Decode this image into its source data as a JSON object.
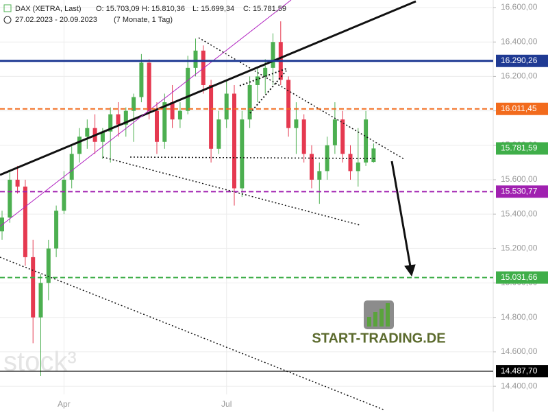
{
  "chart_data": {
    "type": "candlestick",
    "header": {
      "title": "DAX (XETRA, Last)",
      "items": [
        "O: 15.703,09",
        "H: 15.810,36",
        "L: 15.699,34",
        "C: 15.781,59"
      ],
      "range": "27.02.2023 - 20.09.2023",
      "duration": "(7 Monate, 1 Tag)"
    },
    "watermark": "stock³",
    "logo": "START-TRADING.DE",
    "categories": [
      null,
      null,
      null,
      null,
      null,
      null,
      null,
      null,
      "Apr",
      null,
      null,
      null,
      null,
      null,
      null,
      null,
      null,
      null,
      null,
      null,
      null,
      null,
      null,
      null,
      null,
      null,
      null,
      null,
      null,
      "Jul",
      null,
      null,
      null,
      null,
      null,
      null,
      null,
      null,
      null,
      null,
      null,
      null,
      null,
      null,
      null,
      null,
      null,
      null,
      null
    ],
    "open": [
      15300,
      15380,
      15600,
      15560,
      15150,
      14800,
      15000,
      15200,
      15420,
      15600,
      15750,
      15850,
      15900,
      15820,
      15880,
      15980,
      15920,
      16000,
      16080,
      16280,
      16000,
      15820,
      16050,
      15950,
      16000,
      16250,
      16350,
      16150,
      15780,
      15950,
      16100,
      15550,
      15950,
      16150,
      16200,
      16250,
      16400,
      16180,
      15900,
      15950,
      15750,
      15600,
      15650,
      15800,
      15950,
      15750,
      15650,
      15700,
      15703.09
    ],
    "high": [
      15420,
      15650,
      15680,
      15600,
      15250,
      15050,
      15250,
      15450,
      15650,
      15800,
      15900,
      15950,
      15980,
      15900,
      16020,
      16050,
      16020,
      16100,
      16330,
      16300,
      16050,
      16100,
      16150,
      16050,
      16320,
      16420,
      16380,
      16180,
      16000,
      16180,
      16150,
      16000,
      16200,
      16250,
      16300,
      16450,
      16520,
      16200,
      16050,
      15980,
      15800,
      15700,
      15850,
      16050,
      16000,
      15800,
      15900,
      16000,
      15810.36
    ],
    "low": [
      15250,
      15350,
      15520,
      15100,
      14650,
      14460,
      14900,
      15150,
      15400,
      15550,
      15700,
      15780,
      15750,
      15720,
      15700,
      15850,
      15850,
      15820,
      16050,
      15950,
      15750,
      15780,
      15900,
      15900,
      15980,
      16200,
      16100,
      15700,
      15750,
      15900,
      15450,
      15500,
      15900,
      16050,
      16100,
      16150,
      16150,
      15850,
      15750,
      15700,
      15550,
      15460,
      15600,
      15750,
      15700,
      15600,
      15560,
      15680,
      15699.34
    ],
    "close": [
      15380,
      15600,
      15560,
      15150,
      14800,
      15000,
      15200,
      15420,
      15600,
      15750,
      15850,
      15900,
      15820,
      15880,
      15980,
      15920,
      16000,
      16080,
      16280,
      16000,
      15820,
      16050,
      15950,
      16000,
      16250,
      16350,
      16150,
      15780,
      15950,
      16100,
      15550,
      15950,
      16150,
      16200,
      16250,
      16400,
      16180,
      15900,
      15950,
      15750,
      15600,
      15650,
      15800,
      15950,
      15750,
      15650,
      15700,
      15950,
      15781.59
    ],
    "up_color": "#4caf50",
    "down_color": "#e53950",
    "ylim": [
      14253,
      16644
    ],
    "yticks": [
      {
        "value": 14400,
        "label": "14.400,00"
      },
      {
        "value": 14600,
        "label": "14.600,00"
      },
      {
        "value": 14800,
        "label": "14.800,00"
      },
      {
        "value": 15000,
        "label": "15.000,00"
      },
      {
        "value": 15200,
        "label": "15.200,00"
      },
      {
        "value": 15400,
        "label": "15.400,00"
      },
      {
        "value": 15600,
        "label": "15.600,00"
      },
      {
        "value": 15800,
        "label": "15.800,00"
      },
      {
        "value": 16000,
        "label": "16.000,00"
      },
      {
        "value": 16200,
        "label": "16.200,00"
      },
      {
        "value": 16400,
        "label": "16.400,00"
      },
      {
        "value": 16600,
        "label": "16.600,00"
      }
    ],
    "grid": true,
    "levels": [
      {
        "value": 16290.26,
        "label": "16.290,26",
        "color": "#1f3a93",
        "style": "solid"
      },
      {
        "value": 16011.45,
        "label": "16.011,45",
        "color": "#f26b1d",
        "style": "dashed"
      },
      {
        "value": 15781.59,
        "label": "15.781,59",
        "color": "#3fae49",
        "style": "none"
      },
      {
        "value": 15530.77,
        "label": "15.530,77",
        "color": "#a020b0",
        "style": "dashed"
      },
      {
        "value": 15031.66,
        "label": "15.031,66",
        "color": "#3fae49",
        "style": "dashed"
      },
      {
        "value": 14487.7,
        "label": "14.487,70",
        "color": "#000000",
        "style": "solid"
      }
    ]
  }
}
